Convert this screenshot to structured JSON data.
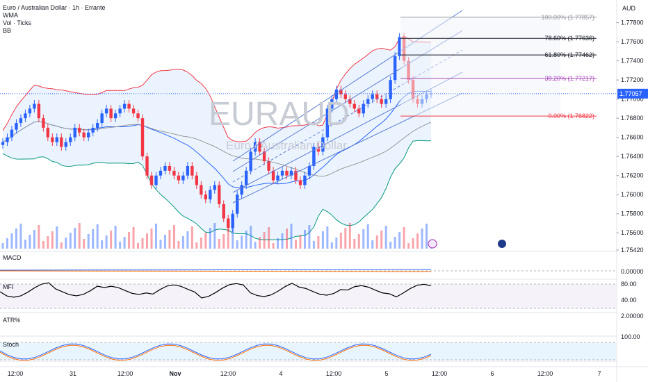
{
  "header": {
    "symbol_title": "Euro / Australian Dollar · 1h · Errante",
    "indicators": [
      "WMA",
      "Vol · Ticks",
      "BB"
    ]
  },
  "watermark": {
    "ticker": "EURAUD",
    "name": "Euro / Australian Dollar"
  },
  "currency": "AUD",
  "last_price": "1.77057",
  "panes": [
    "MACD",
    "MFI",
    "ATR%",
    "Stoch"
  ],
  "colors": {
    "up": "#2962ff",
    "down": "#f23645",
    "bb_upper": "#f23645",
    "bb_lower": "#089981",
    "bb_fill": "#e3effd",
    "wma": "#2a2e39",
    "channel": "#5b7bd5",
    "last": "#2962ff"
  },
  "chart_data": [
    {
      "type": "candlestick",
      "title": "Euro / Australian Dollar · 1h · Errante",
      "y_axis_labels": [
        "1.77800",
        "1.77600",
        "1.77400",
        "1.77200",
        "1.77000",
        "1.76800",
        "1.76600",
        "1.76400",
        "1.76200",
        "1.76000",
        "1.75800",
        "1.75600",
        "1.75420"
      ],
      "ylim": [
        1.7542,
        1.7795
      ],
      "x_axis_labels": [
        "12:00",
        "31",
        "12:00",
        "Nov",
        "12:00",
        "4",
        "12:00",
        "5",
        "12:00",
        "6",
        "12:00",
        "7"
      ],
      "closes": [
        1.7655,
        1.766,
        1.7668,
        1.7675,
        1.768,
        1.7685,
        1.769,
        1.7695,
        1.768,
        1.767,
        1.766,
        1.7655,
        1.766,
        1.765,
        1.7655,
        1.766,
        1.767,
        1.7665,
        1.766,
        1.7665,
        1.767,
        1.7675,
        1.7685,
        1.769,
        1.768,
        1.7685,
        1.769,
        1.7695,
        1.769,
        1.7685,
        1.768,
        1.764,
        1.762,
        1.761,
        1.762,
        1.7625,
        1.763,
        1.7625,
        1.762,
        1.7615,
        1.762,
        1.763,
        1.762,
        1.761,
        1.76,
        1.7595,
        1.7605,
        1.761,
        1.759,
        1.7575,
        1.7565,
        1.758,
        1.76,
        1.761,
        1.7625,
        1.7645,
        1.7655,
        1.7645,
        1.7635,
        1.7625,
        1.7615,
        1.762,
        1.7625,
        1.762,
        1.7625,
        1.7615,
        1.761,
        1.762,
        1.763,
        1.765,
        1.7645,
        1.766,
        1.769,
        1.77,
        1.771,
        1.7705,
        1.77,
        1.7695,
        1.769,
        1.7685,
        1.7695,
        1.77,
        1.7705,
        1.77,
        1.7695,
        1.77,
        1.772,
        1.7745,
        1.7765,
        1.774,
        1.772,
        1.77,
        1.7695,
        1.77,
        1.7705,
        1.7706
      ],
      "indicator_lines": [
        "Bollinger Bands upper",
        "Bollinger Bands lower",
        "WMA"
      ],
      "fibonacci": [
        {
          "label": "100.00% (1.77857)",
          "level": 1.77857
        },
        {
          "label": "78.60% (1.77636)",
          "level": 1.77636
        },
        {
          "label": "61.80% (1.77462)",
          "level": 1.77462
        },
        {
          "label": "38.20% (1.77217)",
          "level": 1.77217
        },
        {
          "label": "0.00% (1.76822)",
          "level": 1.76822
        }
      ],
      "pane_axis_labels": {
        "MACD": [
          "0.00000"
        ],
        "MFI": [
          "80.00",
          "40.00"
        ],
        "ATR%": [
          "2.00000"
        ],
        "Stoch": [
          "100.00"
        ]
      },
      "grid": true
    }
  ]
}
